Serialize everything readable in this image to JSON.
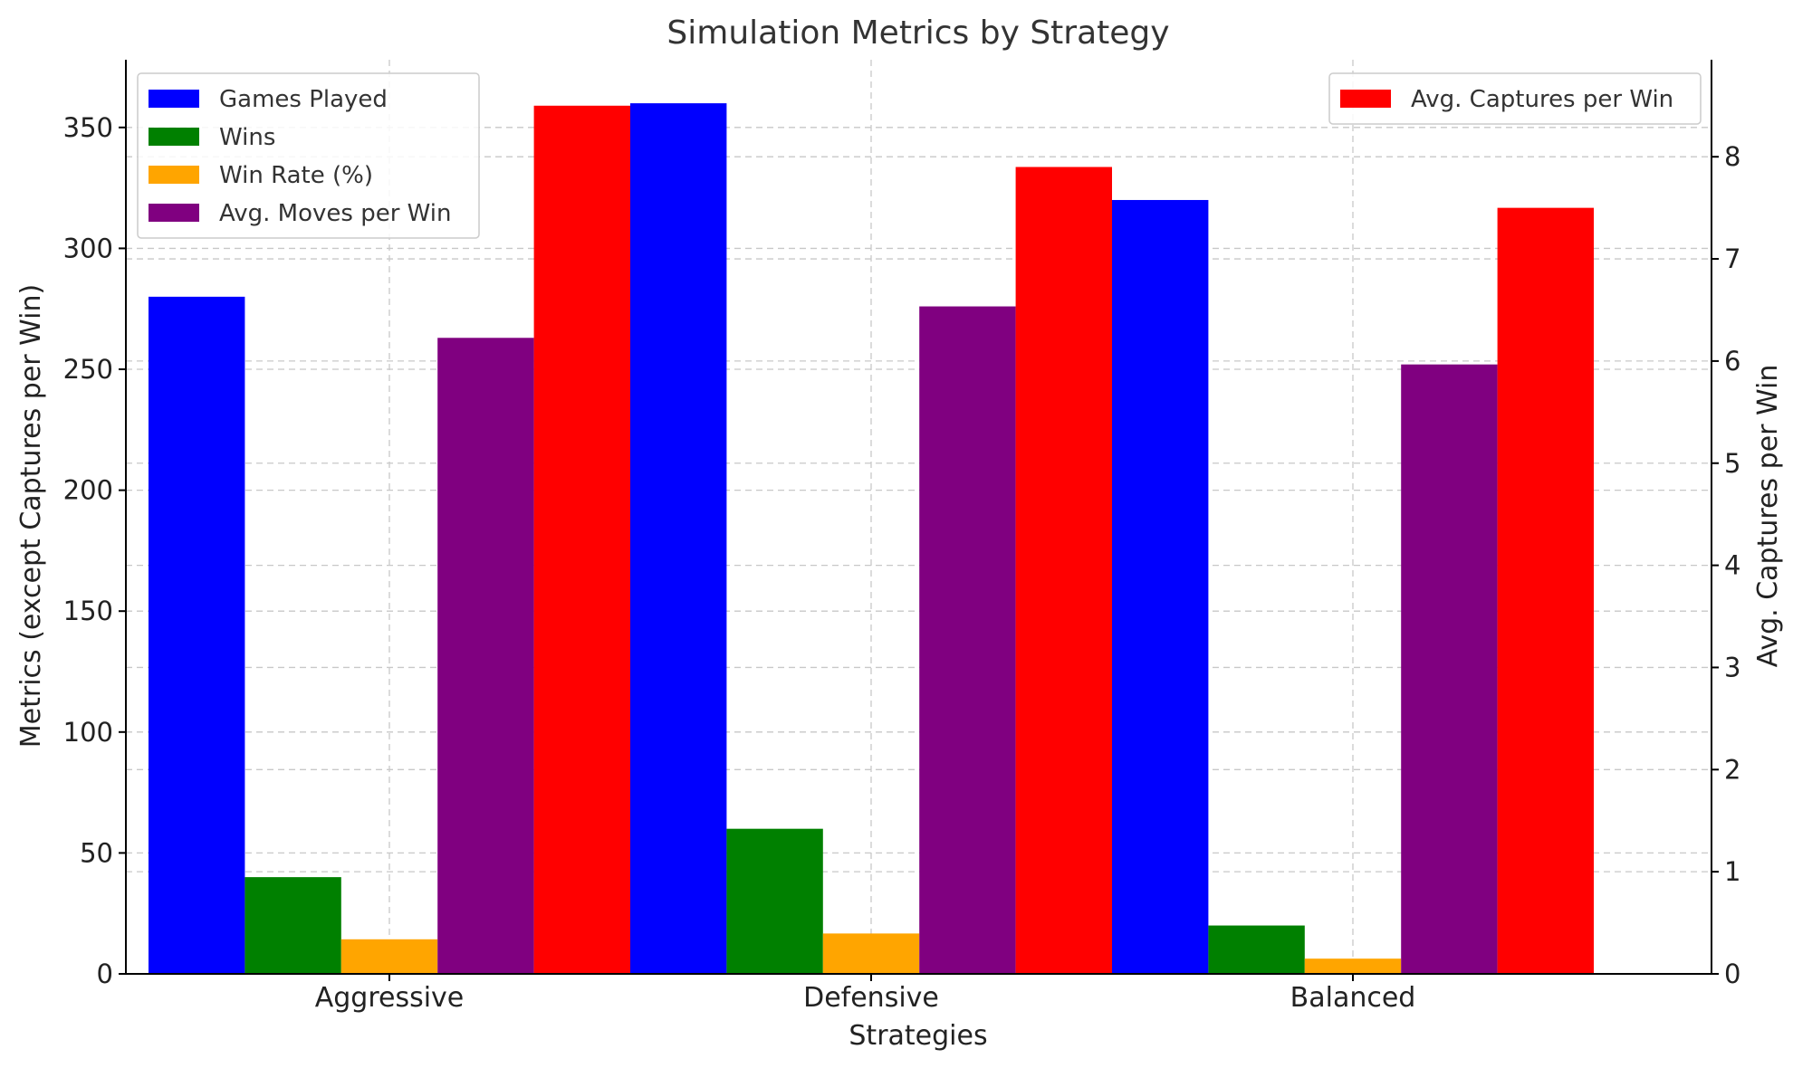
{
  "chart_data": {
    "type": "bar",
    "title": "Simulation Metrics by Strategy",
    "xlabel": "Strategies",
    "ylabel": "Metrics (except Captures per Win)",
    "ylabel_right": "Avg. Captures per Win",
    "categories": [
      "Aggressive",
      "Defensive",
      "Balanced"
    ],
    "ylim": [
      0,
      378
    ],
    "ylim_right": [
      0,
      8.95
    ],
    "yticks": [
      0,
      50,
      100,
      150,
      200,
      250,
      300,
      350
    ],
    "yticks_right": [
      0,
      1,
      2,
      3,
      4,
      5,
      6,
      7,
      8
    ],
    "grid": true,
    "series": [
      {
        "name": "Games Played",
        "values": [
          280,
          360,
          320
        ],
        "color": "#0000ff",
        "axis": "left"
      },
      {
        "name": "Wins",
        "values": [
          40,
          60,
          20
        ],
        "color": "#008000",
        "axis": "left"
      },
      {
        "name": "Win Rate (%)",
        "values": [
          14.3,
          16.7,
          6.3
        ],
        "color": "#ffa500",
        "axis": "left"
      },
      {
        "name": "Avg. Moves per Win",
        "values": [
          263,
          276,
          252
        ],
        "color": "#800080",
        "axis": "left"
      },
      {
        "name": "Avg. Captures per Win",
        "values": [
          8.5,
          7.9,
          7.5
        ],
        "color": "#ff0000",
        "axis": "right"
      }
    ],
    "legend_left_placement": "upper-left",
    "legend_right_placement": "upper-right"
  }
}
